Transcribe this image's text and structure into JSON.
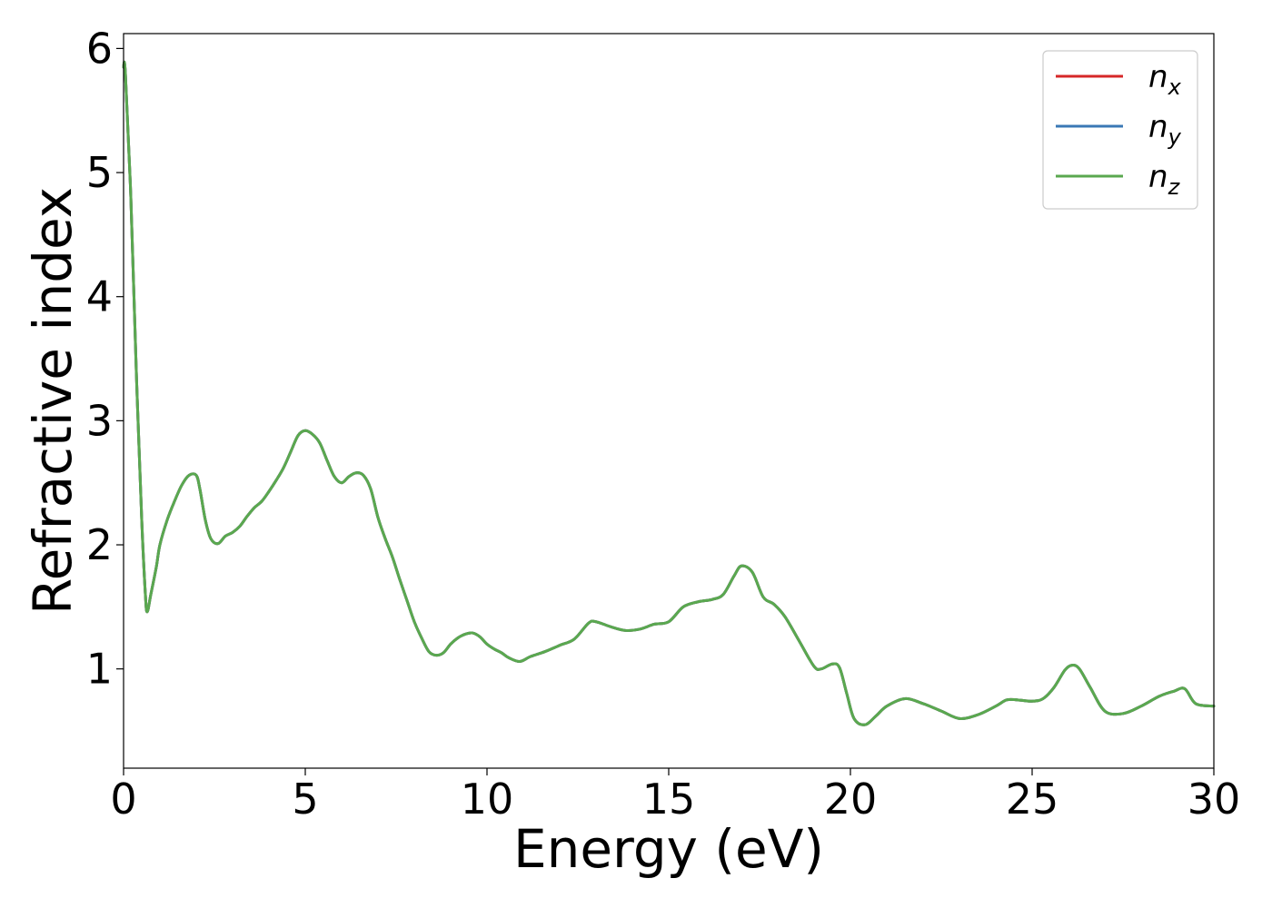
{
  "chart_data": {
    "type": "line",
    "title": "",
    "xlabel": "Energy (eV)",
    "ylabel": "Refractive index",
    "xlim": [
      0,
      30
    ],
    "ylim": [
      0.2,
      6.12
    ],
    "xticks": [
      0,
      5,
      10,
      15,
      20,
      25,
      30
    ],
    "xtick_labels": [
      "0",
      "5",
      "10",
      "15",
      "20",
      "25",
      "30"
    ],
    "yticks": [
      1,
      2,
      3,
      4,
      5,
      6
    ],
    "ytick_labels": [
      "1",
      "2",
      "3",
      "4",
      "5",
      "6"
    ],
    "grid": false,
    "legend_position": "top-right",
    "series": [
      {
        "name": "n_x",
        "legend_base": "n",
        "legend_sub": "x",
        "color": "#d62728",
        "x": [
          0.0,
          0.05,
          0.2,
          0.35,
          0.5,
          0.6,
          0.65,
          0.75,
          0.9,
          1.0,
          1.2,
          1.4,
          1.6,
          1.8,
          2.0,
          2.1,
          2.25,
          2.4,
          2.6,
          2.8,
          3.0,
          3.2,
          3.4,
          3.6,
          3.8,
          4.0,
          4.2,
          4.4,
          4.6,
          4.8,
          5.0,
          5.2,
          5.4,
          5.6,
          5.8,
          6.0,
          6.2,
          6.4,
          6.6,
          6.8,
          7.0,
          7.2,
          7.4,
          7.6,
          7.8,
          8.0,
          8.2,
          8.4,
          8.6,
          8.8,
          9.0,
          9.2,
          9.4,
          9.6,
          9.8,
          10.0,
          10.2,
          10.4,
          10.6,
          10.9,
          11.2,
          11.6,
          12.0,
          12.4,
          12.8,
          13.0,
          13.4,
          13.8,
          14.2,
          14.6,
          15.0,
          15.4,
          15.8,
          16.2,
          16.5,
          16.8,
          17.0,
          17.3,
          17.6,
          17.9,
          18.2,
          18.6,
          19.0,
          19.2,
          19.5,
          19.7,
          19.9,
          20.1,
          20.4,
          20.7,
          21.0,
          21.5,
          22.0,
          22.5,
          23.0,
          23.5,
          24.0,
          24.3,
          24.6,
          25.0,
          25.3,
          25.6,
          25.9,
          26.1,
          26.3,
          26.6,
          27.0,
          27.5,
          28.0,
          28.5,
          28.9,
          29.2,
          29.5,
          30.0
        ],
        "y": [
          5.85,
          5.8,
          4.8,
          3.4,
          2.2,
          1.6,
          1.46,
          1.6,
          1.82,
          2.0,
          2.2,
          2.35,
          2.48,
          2.56,
          2.56,
          2.45,
          2.2,
          2.05,
          2.01,
          2.07,
          2.1,
          2.15,
          2.23,
          2.3,
          2.35,
          2.43,
          2.52,
          2.62,
          2.75,
          2.88,
          2.92,
          2.89,
          2.82,
          2.68,
          2.55,
          2.5,
          2.55,
          2.58,
          2.56,
          2.45,
          2.22,
          2.05,
          1.9,
          1.72,
          1.55,
          1.38,
          1.25,
          1.14,
          1.11,
          1.13,
          1.2,
          1.25,
          1.28,
          1.29,
          1.26,
          1.2,
          1.16,
          1.13,
          1.09,
          1.06,
          1.1,
          1.14,
          1.19,
          1.24,
          1.37,
          1.38,
          1.34,
          1.31,
          1.32,
          1.36,
          1.38,
          1.5,
          1.54,
          1.56,
          1.6,
          1.75,
          1.83,
          1.78,
          1.58,
          1.52,
          1.42,
          1.22,
          1.02,
          1.0,
          1.04,
          1.01,
          0.8,
          0.6,
          0.55,
          0.62,
          0.7,
          0.76,
          0.72,
          0.66,
          0.6,
          0.63,
          0.7,
          0.75,
          0.75,
          0.74,
          0.76,
          0.85,
          0.99,
          1.03,
          1.0,
          0.85,
          0.66,
          0.64,
          0.7,
          0.78,
          0.82,
          0.84,
          0.72,
          0.7
        ]
      },
      {
        "name": "n_y",
        "legend_base": "n",
        "legend_sub": "y",
        "color": "#3a78b5",
        "x": [
          0.0,
          0.05,
          0.2,
          0.35,
          0.5,
          0.6,
          0.65,
          0.75,
          0.9,
          1.0,
          1.2,
          1.4,
          1.6,
          1.8,
          2.0,
          2.1,
          2.25,
          2.4,
          2.6,
          2.8,
          3.0,
          3.2,
          3.4,
          3.6,
          3.8,
          4.0,
          4.2,
          4.4,
          4.6,
          4.8,
          5.0,
          5.2,
          5.4,
          5.6,
          5.8,
          6.0,
          6.2,
          6.4,
          6.6,
          6.8,
          7.0,
          7.2,
          7.4,
          7.6,
          7.8,
          8.0,
          8.2,
          8.4,
          8.6,
          8.8,
          9.0,
          9.2,
          9.4,
          9.6,
          9.8,
          10.0,
          10.2,
          10.4,
          10.6,
          10.9,
          11.2,
          11.6,
          12.0,
          12.4,
          12.8,
          13.0,
          13.4,
          13.8,
          14.2,
          14.6,
          15.0,
          15.4,
          15.8,
          16.2,
          16.5,
          16.8,
          17.0,
          17.3,
          17.6,
          17.9,
          18.2,
          18.6,
          19.0,
          19.2,
          19.5,
          19.7,
          19.9,
          20.1,
          20.4,
          20.7,
          21.0,
          21.5,
          22.0,
          22.5,
          23.0,
          23.5,
          24.0,
          24.3,
          24.6,
          25.0,
          25.3,
          25.6,
          25.9,
          26.1,
          26.3,
          26.6,
          27.0,
          27.5,
          28.0,
          28.5,
          28.9,
          29.2,
          29.5,
          30.0
        ],
        "y": [
          5.85,
          5.8,
          4.8,
          3.4,
          2.2,
          1.6,
          1.46,
          1.6,
          1.82,
          2.0,
          2.2,
          2.35,
          2.48,
          2.56,
          2.56,
          2.45,
          2.2,
          2.05,
          2.01,
          2.07,
          2.1,
          2.15,
          2.23,
          2.3,
          2.35,
          2.43,
          2.52,
          2.62,
          2.75,
          2.88,
          2.92,
          2.89,
          2.82,
          2.68,
          2.55,
          2.5,
          2.55,
          2.58,
          2.56,
          2.45,
          2.22,
          2.05,
          1.9,
          1.72,
          1.55,
          1.38,
          1.25,
          1.14,
          1.11,
          1.13,
          1.2,
          1.25,
          1.28,
          1.29,
          1.26,
          1.2,
          1.16,
          1.13,
          1.09,
          1.06,
          1.1,
          1.14,
          1.19,
          1.24,
          1.37,
          1.38,
          1.34,
          1.31,
          1.32,
          1.36,
          1.38,
          1.5,
          1.54,
          1.56,
          1.6,
          1.75,
          1.83,
          1.78,
          1.58,
          1.52,
          1.42,
          1.22,
          1.02,
          1.0,
          1.04,
          1.01,
          0.8,
          0.6,
          0.55,
          0.62,
          0.7,
          0.76,
          0.72,
          0.66,
          0.6,
          0.63,
          0.7,
          0.75,
          0.75,
          0.74,
          0.76,
          0.85,
          0.99,
          1.03,
          1.0,
          0.85,
          0.66,
          0.64,
          0.7,
          0.78,
          0.82,
          0.84,
          0.72,
          0.7
        ]
      },
      {
        "name": "n_z",
        "legend_base": "n",
        "legend_sub": "z",
        "color": "#5aa84f",
        "x": [
          0.0,
          0.05,
          0.2,
          0.35,
          0.5,
          0.6,
          0.65,
          0.75,
          0.9,
          1.0,
          1.2,
          1.4,
          1.6,
          1.8,
          2.0,
          2.1,
          2.25,
          2.4,
          2.6,
          2.8,
          3.0,
          3.2,
          3.4,
          3.6,
          3.8,
          4.0,
          4.2,
          4.4,
          4.6,
          4.8,
          5.0,
          5.2,
          5.4,
          5.6,
          5.8,
          6.0,
          6.2,
          6.4,
          6.6,
          6.8,
          7.0,
          7.2,
          7.4,
          7.6,
          7.8,
          8.0,
          8.2,
          8.4,
          8.6,
          8.8,
          9.0,
          9.2,
          9.4,
          9.6,
          9.8,
          10.0,
          10.2,
          10.4,
          10.6,
          10.9,
          11.2,
          11.6,
          12.0,
          12.4,
          12.8,
          13.0,
          13.4,
          13.8,
          14.2,
          14.6,
          15.0,
          15.4,
          15.8,
          16.2,
          16.5,
          16.8,
          17.0,
          17.3,
          17.6,
          17.9,
          18.2,
          18.6,
          19.0,
          19.2,
          19.5,
          19.7,
          19.9,
          20.1,
          20.4,
          20.7,
          21.0,
          21.5,
          22.0,
          22.5,
          23.0,
          23.5,
          24.0,
          24.3,
          24.6,
          25.0,
          25.3,
          25.6,
          25.9,
          26.1,
          26.3,
          26.6,
          27.0,
          27.5,
          28.0,
          28.5,
          28.9,
          29.2,
          29.5,
          30.0
        ],
        "y": [
          5.85,
          5.8,
          4.8,
          3.4,
          2.2,
          1.6,
          1.46,
          1.6,
          1.82,
          2.0,
          2.2,
          2.35,
          2.48,
          2.56,
          2.56,
          2.45,
          2.2,
          2.05,
          2.01,
          2.07,
          2.1,
          2.15,
          2.23,
          2.3,
          2.35,
          2.43,
          2.52,
          2.62,
          2.75,
          2.88,
          2.92,
          2.89,
          2.82,
          2.68,
          2.55,
          2.5,
          2.55,
          2.58,
          2.56,
          2.45,
          2.22,
          2.05,
          1.9,
          1.72,
          1.55,
          1.38,
          1.25,
          1.14,
          1.11,
          1.13,
          1.2,
          1.25,
          1.28,
          1.29,
          1.26,
          1.2,
          1.16,
          1.13,
          1.09,
          1.06,
          1.1,
          1.14,
          1.19,
          1.24,
          1.37,
          1.38,
          1.34,
          1.31,
          1.32,
          1.36,
          1.38,
          1.5,
          1.54,
          1.56,
          1.6,
          1.75,
          1.83,
          1.78,
          1.58,
          1.52,
          1.42,
          1.22,
          1.02,
          1.0,
          1.04,
          1.01,
          0.8,
          0.6,
          0.55,
          0.62,
          0.7,
          0.76,
          0.72,
          0.66,
          0.6,
          0.63,
          0.7,
          0.75,
          0.75,
          0.74,
          0.76,
          0.85,
          0.99,
          1.03,
          1.0,
          0.85,
          0.66,
          0.64,
          0.7,
          0.78,
          0.82,
          0.84,
          0.72,
          0.7
        ]
      }
    ]
  }
}
